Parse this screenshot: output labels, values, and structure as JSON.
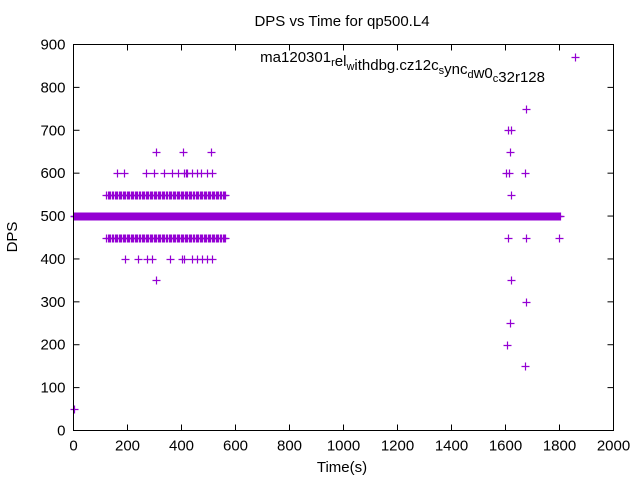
{
  "chart_data": {
    "type": "scatter",
    "title": "DPS vs Time for qp500.L4",
    "xlabel": "Time(s)",
    "ylabel": "DPS",
    "xlim": [
      0,
      2000
    ],
    "ylim": [
      0,
      900
    ],
    "x_ticks": [
      "0",
      "200",
      "400",
      "600",
      "800",
      "1000",
      "1200",
      "1400",
      "1600",
      "1800",
      "2000"
    ],
    "y_ticks": [
      "0",
      "100",
      "200",
      "300",
      "400",
      "500",
      "600",
      "700",
      "800",
      "900"
    ],
    "grid": false,
    "legend_placement": "top-right",
    "color": "#9400d3",
    "series": [
      {
        "name": "ma120301_rel_withdbg.cz12c_sync_dw0_c32r128",
        "dense_runs": [
          {
            "y": 500,
            "x_start": 0,
            "x_end": 1800,
            "step": 3
          },
          {
            "y": 550,
            "x_start": 122,
            "x_end": 563,
            "step": 5
          },
          {
            "y": 450,
            "x_start": 122,
            "x_end": 563,
            "step": 5
          }
        ],
        "points": [
          [
            0,
            50
          ],
          [
            305,
            650
          ],
          [
            405,
            650
          ],
          [
            508,
            650
          ],
          [
            162,
            600
          ],
          [
            186,
            600
          ],
          [
            267,
            600
          ],
          [
            297,
            600
          ],
          [
            337,
            600
          ],
          [
            365,
            600
          ],
          [
            386,
            600
          ],
          [
            408,
            600
          ],
          [
            415,
            600
          ],
          [
            421,
            600
          ],
          [
            439,
            600
          ],
          [
            458,
            600
          ],
          [
            474,
            600
          ],
          [
            495,
            600
          ],
          [
            514,
            600
          ],
          [
            189,
            400
          ],
          [
            238,
            400
          ],
          [
            273,
            400
          ],
          [
            291,
            400
          ],
          [
            359,
            400
          ],
          [
            403,
            400
          ],
          [
            411,
            400
          ],
          [
            440,
            400
          ],
          [
            458,
            400
          ],
          [
            477,
            400
          ],
          [
            495,
            400
          ],
          [
            514,
            400
          ],
          [
            304,
            350
          ],
          [
            1676,
            750
          ],
          [
            1609,
            700
          ],
          [
            1619,
            700
          ],
          [
            1616,
            650
          ],
          [
            1601,
            600
          ],
          [
            1612,
            600
          ],
          [
            1671,
            600
          ],
          [
            1620,
            550
          ],
          [
            1609,
            450
          ],
          [
            1675,
            450
          ],
          [
            1797,
            450
          ],
          [
            1620,
            350
          ],
          [
            1675,
            300
          ],
          [
            1616,
            250
          ],
          [
            1605,
            200
          ],
          [
            1671,
            150
          ]
        ]
      }
    ]
  }
}
